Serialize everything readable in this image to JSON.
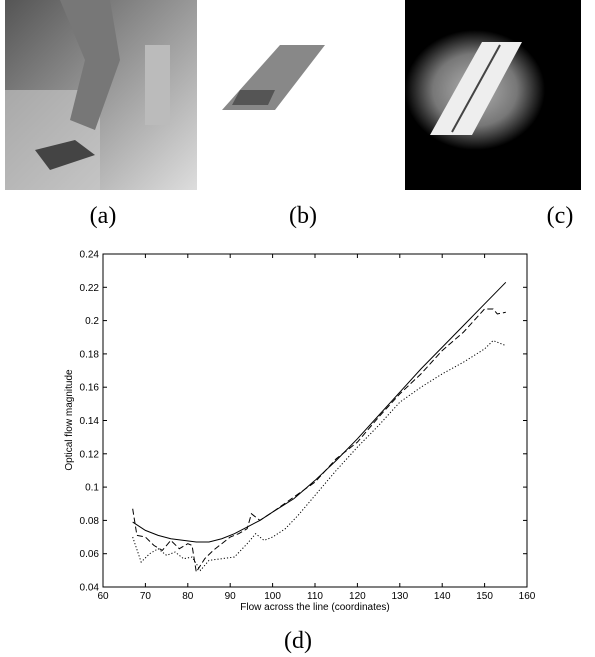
{
  "panels": [
    {
      "label": "(a)"
    },
    {
      "label": "(b)"
    },
    {
      "label": "(c)"
    },
    {
      "label": "(d)"
    }
  ],
  "chart_data": {
    "type": "line",
    "xlabel": "Flow across the line (coordinates)",
    "ylabel": "Optical flow magnitude",
    "xlim": [
      60,
      160
    ],
    "xticks": [
      60,
      70,
      80,
      90,
      100,
      110,
      120,
      130,
      140,
      150,
      160
    ],
    "ylim": [
      0.04,
      0.24
    ],
    "yticks": [
      0.04,
      0.06,
      0.08,
      0.1,
      0.12,
      0.14,
      0.16,
      0.18,
      0.2,
      0.22,
      0.24
    ],
    "series": [
      {
        "line_style": "solid",
        "color": "#000000",
        "x": [
          67,
          70,
          73,
          76,
          79,
          82,
          85,
          88,
          91,
          94,
          97,
          100,
          105,
          110,
          115,
          120,
          125,
          130,
          135,
          140,
          145,
          150,
          155
        ],
        "values": [
          0.079,
          0.074,
          0.071,
          0.069,
          0.068,
          0.067,
          0.067,
          0.069,
          0.072,
          0.076,
          0.08,
          0.085,
          0.093,
          0.104,
          0.116,
          0.129,
          0.143,
          0.157,
          0.171,
          0.184,
          0.197,
          0.21,
          0.223
        ]
      },
      {
        "line_style": "dashed",
        "color": "#000000",
        "x": [
          67,
          68,
          70,
          72,
          74,
          76,
          78,
          80,
          81,
          82,
          84,
          86,
          88,
          90,
          92,
          94,
          95,
          97,
          100,
          105,
          110,
          115,
          120,
          125,
          130,
          135,
          140,
          145,
          150,
          152,
          153,
          155
        ],
        "values": [
          0.087,
          0.071,
          0.07,
          0.065,
          0.062,
          0.068,
          0.063,
          0.066,
          0.065,
          0.049,
          0.057,
          0.062,
          0.066,
          0.07,
          0.072,
          0.075,
          0.084,
          0.08,
          0.085,
          0.094,
          0.103,
          0.117,
          0.127,
          0.142,
          0.156,
          0.168,
          0.182,
          0.193,
          0.207,
          0.207,
          0.204,
          0.205
        ]
      },
      {
        "line_style": "dotted",
        "color": "#000000",
        "x": [
          67,
          69,
          71,
          73,
          75,
          77,
          79,
          81,
          83,
          85,
          88,
          91,
          94,
          96,
          98,
          100,
          103,
          106,
          110,
          115,
          120,
          125,
          130,
          135,
          140,
          145,
          150,
          152,
          155
        ],
        "values": [
          0.07,
          0.055,
          0.06,
          0.063,
          0.059,
          0.061,
          0.057,
          0.058,
          0.05,
          0.056,
          0.057,
          0.058,
          0.066,
          0.072,
          0.068,
          0.07,
          0.075,
          0.083,
          0.095,
          0.11,
          0.124,
          0.137,
          0.151,
          0.16,
          0.168,
          0.175,
          0.183,
          0.188,
          0.185
        ]
      }
    ]
  }
}
